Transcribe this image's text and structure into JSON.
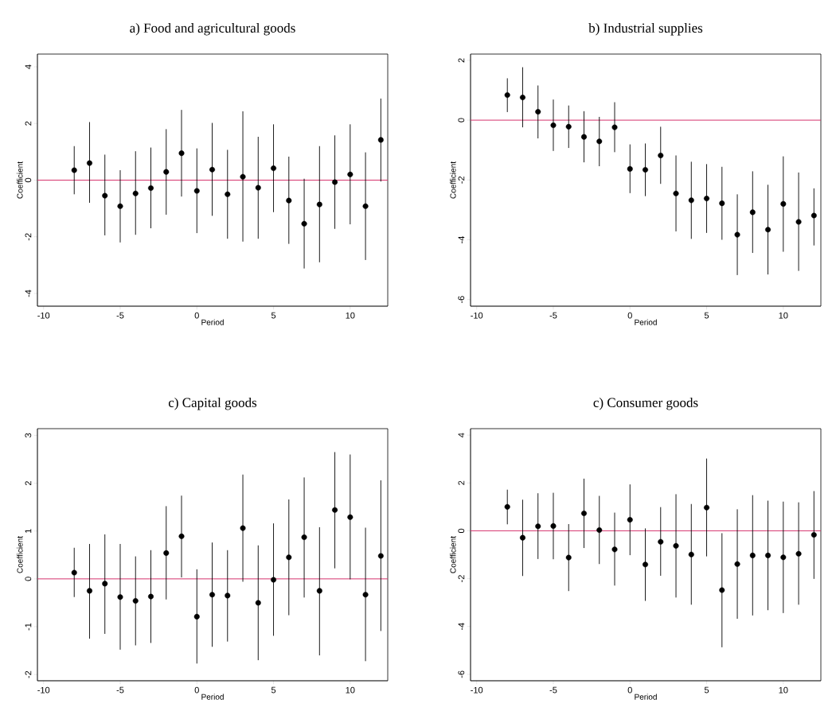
{
  "chart_data": [
    {
      "type": "scatter",
      "title": "a) Food and agricultural goods",
      "xlabel": "Period",
      "ylabel": "Coefficient",
      "marker": "circle",
      "grid": false,
      "color": "#000000",
      "x": [
        -8,
        -7,
        -6,
        -5,
        -4,
        -3,
        -2,
        -1,
        0,
        1,
        2,
        3,
        4,
        5,
        6,
        7,
        8,
        9,
        10,
        11,
        12
      ],
      "values": [
        0.35,
        0.6,
        -0.55,
        -0.92,
        -0.47,
        -0.28,
        0.29,
        0.95,
        -0.38,
        0.37,
        -0.5,
        0.12,
        -0.27,
        0.42,
        -0.72,
        -1.54,
        -0.86,
        -0.07,
        0.2,
        -0.92,
        1.42
      ],
      "errors": [
        [
          -0.5,
          1.2
        ],
        [
          -0.8,
          2.05
        ],
        [
          -1.95,
          0.9
        ],
        [
          -2.2,
          0.35
        ],
        [
          -1.93,
          1.02
        ],
        [
          -1.7,
          1.15
        ],
        [
          -1.22,
          1.8
        ],
        [
          -0.58,
          2.48
        ],
        [
          -1.87,
          1.12
        ],
        [
          -1.26,
          2.02
        ],
        [
          -2.07,
          1.07
        ],
        [
          -2.17,
          2.43
        ],
        [
          -2.07,
          1.53
        ],
        [
          -1.13,
          1.97
        ],
        [
          -2.25,
          0.83
        ],
        [
          -3.12,
          0.05
        ],
        [
          -2.9,
          1.2
        ],
        [
          -1.72,
          1.58
        ],
        [
          -1.56,
          1.97
        ],
        [
          -2.82,
          0.98
        ],
        [
          -0.05,
          2.88
        ]
      ],
      "xlim": [
        -10.4,
        12.45
      ],
      "xticks": [
        -10,
        -5,
        0,
        5,
        10
      ],
      "ylim": [
        -4.45,
        4.45
      ],
      "yticks": [
        -4,
        -2,
        0,
        2,
        4
      ],
      "ref_lines": [
        {
          "axis": "y",
          "value": 0,
          "color": "#d6336c"
        }
      ]
    },
    {
      "type": "scatter",
      "title": "b) Industrial supplies",
      "xlabel": "Period",
      "ylabel": "Coefficient",
      "marker": "circle",
      "grid": false,
      "color": "#000000",
      "x": [
        -8,
        -7,
        -6,
        -5,
        -4,
        -3,
        -2,
        -1,
        0,
        1,
        2,
        3,
        4,
        5,
        6,
        7,
        8,
        9,
        10,
        11,
        12
      ],
      "values": [
        0.84,
        0.76,
        0.28,
        -0.17,
        -0.22,
        -0.56,
        -0.71,
        -0.24,
        -1.63,
        -1.66,
        -1.18,
        -2.45,
        -2.68,
        -2.62,
        -2.78,
        -3.83,
        -3.08,
        -3.66,
        -2.8,
        -3.4,
        -3.19
      ],
      "errors": [
        [
          0.27,
          1.4
        ],
        [
          -0.24,
          1.77
        ],
        [
          -0.61,
          1.16
        ],
        [
          -1.03,
          0.69
        ],
        [
          -0.93,
          0.49
        ],
        [
          -1.41,
          0.3
        ],
        [
          -1.54,
          0.11
        ],
        [
          -1.07,
          0.6
        ],
        [
          -2.44,
          -0.81
        ],
        [
          -2.54,
          -0.78
        ],
        [
          -2.13,
          -0.22
        ],
        [
          -3.72,
          -1.18
        ],
        [
          -3.97,
          -1.39
        ],
        [
          -3.77,
          -1.47
        ],
        [
          -4.0,
          -1.56
        ],
        [
          -5.18,
          -2.48
        ],
        [
          -4.44,
          -1.71
        ],
        [
          -5.16,
          -2.16
        ],
        [
          -4.4,
          -1.21
        ],
        [
          -5.04,
          -1.75
        ],
        [
          -4.19,
          -2.28
        ]
      ],
      "xlim": [
        -10.4,
        12.45
      ],
      "xticks": [
        -10,
        -5,
        0,
        5,
        10
      ],
      "ylim": [
        -6.22,
        2.21
      ],
      "yticks": [
        -6,
        -4,
        -2,
        0,
        2
      ],
      "ref_lines": [
        {
          "axis": "y",
          "value": 0,
          "color": "#d6336c"
        }
      ]
    },
    {
      "type": "scatter",
      "title": "c) Capital goods",
      "xlabel": "Period",
      "ylabel": "Coefficient",
      "marker": "circle",
      "grid": false,
      "color": "#000000",
      "x": [
        -8,
        -7,
        -6,
        -5,
        -4,
        -3,
        -2,
        -1,
        0,
        1,
        2,
        3,
        4,
        5,
        6,
        7,
        8,
        9,
        10,
        11,
        12
      ],
      "values": [
        0.13,
        -0.25,
        -0.1,
        -0.38,
        -0.46,
        -0.37,
        0.54,
        0.89,
        -0.79,
        -0.33,
        -0.35,
        1.06,
        -0.5,
        -0.02,
        0.45,
        0.87,
        -0.25,
        1.44,
        1.29,
        -0.33,
        0.48
      ],
      "errors": [
        [
          -0.38,
          0.65
        ],
        [
          -1.25,
          0.73
        ],
        [
          -1.15,
          0.93
        ],
        [
          -1.48,
          0.73
        ],
        [
          -1.39,
          0.47
        ],
        [
          -1.34,
          0.6
        ],
        [
          -0.43,
          1.52
        ],
        [
          0.03,
          1.74
        ],
        [
          -1.77,
          0.2
        ],
        [
          -1.42,
          0.76
        ],
        [
          -1.31,
          0.6
        ],
        [
          -0.06,
          2.18
        ],
        [
          -1.7,
          0.7
        ],
        [
          -1.19,
          1.16
        ],
        [
          -0.76,
          1.66
        ],
        [
          -0.39,
          2.12
        ],
        [
          -1.6,
          1.08
        ],
        [
          0.22,
          2.65
        ],
        [
          -0.01,
          2.6
        ],
        [
          -1.72,
          1.07
        ],
        [
          -1.09,
          2.06
        ]
      ],
      "xlim": [
        -10.4,
        12.45
      ],
      "xticks": [
        -10,
        -5,
        0,
        5,
        10
      ],
      "ylim": [
        -2.13,
        3.14
      ],
      "yticks": [
        -2,
        -1,
        0,
        1,
        2,
        3
      ],
      "ref_lines": [
        {
          "axis": "y",
          "value": 0,
          "color": "#d6336c"
        }
      ]
    },
    {
      "type": "scatter",
      "title": "c) Consumer goods",
      "xlabel": "Period",
      "ylabel": "Coefficient",
      "marker": "circle",
      "grid": false,
      "color": "#000000",
      "x": [
        -8,
        -7,
        -6,
        -5,
        -4,
        -3,
        -2,
        -1,
        0,
        1,
        2,
        3,
        4,
        5,
        6,
        7,
        8,
        9,
        10,
        11,
        12
      ],
      "values": [
        1.0,
        -0.29,
        0.19,
        0.2,
        -1.12,
        0.73,
        0.03,
        -0.78,
        0.46,
        -1.41,
        -0.46,
        -0.63,
        -0.99,
        0.97,
        -2.48,
        -1.39,
        -1.03,
        -1.03,
        -1.11,
        -0.96,
        -0.17
      ],
      "errors": [
        [
          0.27,
          1.72
        ],
        [
          -1.89,
          1.3
        ],
        [
          -1.18,
          1.57
        ],
        [
          -1.19,
          1.59
        ],
        [
          -2.52,
          0.28
        ],
        [
          -0.72,
          2.18
        ],
        [
          -1.39,
          1.46
        ],
        [
          -2.29,
          0.76
        ],
        [
          -1.02,
          1.94
        ],
        [
          -2.93,
          0.1
        ],
        [
          -1.88,
          0.99
        ],
        [
          -2.79,
          1.53
        ],
        [
          -3.09,
          1.12
        ],
        [
          -1.07,
          3.02
        ],
        [
          -4.87,
          -0.1
        ],
        [
          -3.68,
          0.9
        ],
        [
          -3.54,
          1.49
        ],
        [
          -3.32,
          1.26
        ],
        [
          -3.44,
          1.22
        ],
        [
          -3.09,
          1.19
        ],
        [
          -2.01,
          1.66
        ]
      ],
      "xlim": [
        -10.4,
        12.45
      ],
      "xticks": [
        -10,
        -5,
        0,
        5,
        10
      ],
      "ylim": [
        -6.27,
        4.27
      ],
      "yticks": [
        -6,
        -4,
        -2,
        0,
        2,
        4
      ],
      "ref_lines": [
        {
          "axis": "y",
          "value": 0,
          "color": "#d6336c"
        }
      ]
    }
  ]
}
